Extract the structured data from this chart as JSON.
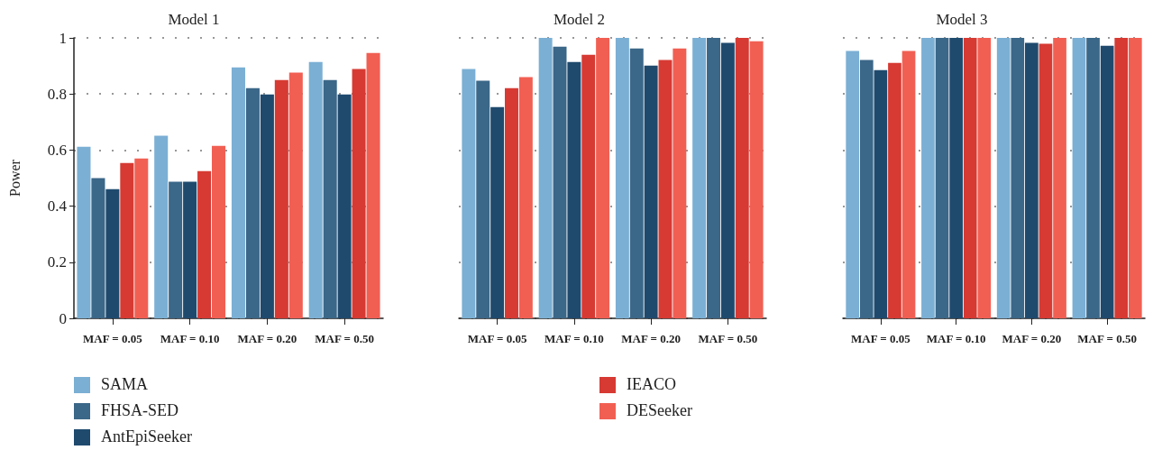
{
  "chart_data": [
    {
      "type": "bar",
      "title": "Model 1",
      "ylabel": "Power",
      "categories": [
        "MAF = 0.05",
        "MAF = 0.10",
        "MAF = 0.20",
        "MAF = 0.50"
      ],
      "ylim": [
        0,
        1
      ],
      "yticks": [
        0,
        0.2,
        0.4,
        0.6,
        0.8,
        1
      ],
      "grid": "y",
      "legend": "bottom",
      "series": [
        {
          "name": "SAMA",
          "color": "#7bafd4",
          "values": [
            0.612,
            0.651,
            0.895,
            0.914
          ]
        },
        {
          "name": "FHSA-SED",
          "color": "#3b6788",
          "values": [
            0.5,
            0.487,
            0.821,
            0.85
          ]
        },
        {
          "name": "AntEpiSeeker",
          "color": "#1f4a6e",
          "values": [
            0.461,
            0.487,
            0.798,
            0.798
          ]
        },
        {
          "name": "IEACO",
          "color": "#d63a33",
          "values": [
            0.554,
            0.525,
            0.85,
            0.889
          ]
        },
        {
          "name": "DESeeker",
          "color": "#f15f53",
          "values": [
            0.57,
            0.615,
            0.876,
            0.946
          ]
        }
      ]
    },
    {
      "type": "bar",
      "title": "Model 2",
      "categories": [
        "MAF = 0.05",
        "MAF = 0.10",
        "MAF = 0.20",
        "MAF = 0.50"
      ],
      "ylim": [
        0,
        1
      ],
      "yticks": [
        0,
        0.2,
        0.4,
        0.6,
        0.8,
        1
      ],
      "grid": "y",
      "tick_labels": "x",
      "series": [
        {
          "color": "#7bafd4",
          "values": [
            0.889,
            1,
            1,
            1
          ]
        },
        {
          "color": "#3b6788",
          "values": [
            0.847,
            0.969,
            0.962,
            1
          ]
        },
        {
          "color": "#1f4a6e",
          "values": [
            0.753,
            0.914,
            0.901,
            0.982
          ]
        },
        {
          "color": "#d63a33",
          "values": [
            0.821,
            0.94,
            0.921,
            1
          ]
        },
        {
          "color": "#f15f53",
          "values": [
            0.86,
            1,
            0.962,
            0.988
          ]
        }
      ]
    },
    {
      "type": "bar",
      "title": "Model 3",
      "categories": [
        "MAF = 0.05",
        "MAF = 0.10",
        "MAF = 0.20",
        "MAF = 0.50"
      ],
      "ylim": [
        0,
        1
      ],
      "yticks": [
        0,
        0.2,
        0.4,
        0.6,
        0.8,
        1
      ],
      "grid": "y",
      "tick_labels": "x",
      "series": [
        {
          "color": "#7bafd4",
          "values": [
            0.953,
            1,
            1,
            1
          ]
        },
        {
          "color": "#3b6788",
          "values": [
            0.921,
            1,
            1,
            1
          ]
        },
        {
          "color": "#1f4a6e",
          "values": [
            0.885,
            1,
            0.982,
            0.972
          ]
        },
        {
          "color": "#d63a33",
          "values": [
            0.911,
            1,
            0.979,
            1
          ]
        },
        {
          "color": "#f15f53",
          "values": [
            0.953,
            1,
            1,
            1
          ]
        }
      ]
    }
  ]
}
